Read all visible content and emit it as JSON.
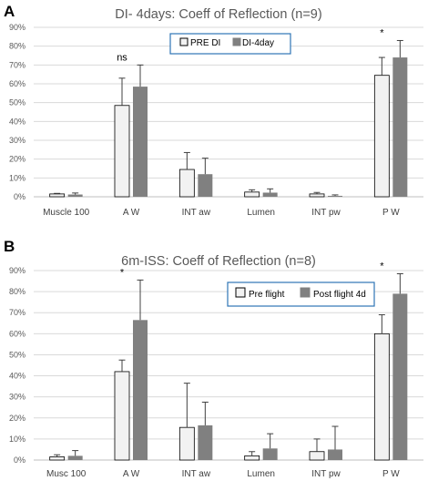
{
  "chart_data": [
    {
      "panel_label": "A",
      "type": "bar",
      "title": "DI- 4days: Coeff of Reflection (n=9)",
      "categories": [
        "Muscle 100",
        "A W",
        "INT aw",
        "Lumen",
        "INT pw",
        "P W"
      ],
      "ylim": [
        0,
        90
      ],
      "yticks": [
        "0%",
        "10%",
        "20%",
        "30%",
        "40%",
        "50%",
        "60%",
        "70%",
        "80%",
        "90%"
      ],
      "grid": true,
      "legend_position": "top-center",
      "series": [
        {
          "name": "PRE DI",
          "values": [
            1.5,
            48.5,
            14.5,
            2.5,
            1.5,
            64.5
          ],
          "errors": [
            0.3,
            14.5,
            9.0,
            1.2,
            0.8,
            9.5
          ],
          "color": "#f2f2f2"
        },
        {
          "name": "DI-4day",
          "values": [
            1.2,
            58.5,
            12.0,
            2.2,
            0.5,
            74.0
          ],
          "errors": [
            0.8,
            11.5,
            8.5,
            2.0,
            0.5,
            9.0
          ],
          "color": "#808080"
        }
      ],
      "annotations": [
        {
          "category": "A W",
          "text": "ns"
        },
        {
          "category": "P W",
          "text": "*"
        }
      ]
    },
    {
      "panel_label": "B",
      "type": "bar",
      "title": "6m-ISS: Coeff of Reflection  (n=8)",
      "categories": [
        "Musc 100",
        "A W",
        "INT aw",
        "Lumen",
        "INT pw",
        "P W"
      ],
      "ylim": [
        0,
        90
      ],
      "yticks": [
        "0%",
        "10%",
        "20%",
        "30%",
        "40%",
        "50%",
        "60%",
        "70%",
        "80%",
        "90%"
      ],
      "grid": true,
      "legend_position": "top-right",
      "series": [
        {
          "name": "Pre flight",
          "values": [
            1.5,
            42.0,
            15.5,
            2.0,
            4.0,
            60.0
          ],
          "errors": [
            1.0,
            5.5,
            21.0,
            2.0,
            6.0,
            9.0
          ],
          "color": "#f2f2f2"
        },
        {
          "name": "Post flight 4d",
          "values": [
            2.0,
            66.5,
            16.5,
            5.5,
            5.0,
            79.0
          ],
          "errors": [
            2.5,
            19.0,
            11.0,
            7.0,
            11.0,
            9.5
          ],
          "color": "#808080"
        }
      ],
      "annotations": [
        {
          "category": "A W",
          "text": "*"
        },
        {
          "category": "P W",
          "text": "*"
        }
      ]
    }
  ]
}
